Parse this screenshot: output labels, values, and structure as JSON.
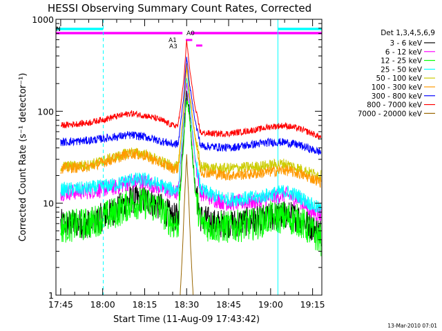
{
  "chart_data": {
    "type": "line",
    "title": "HESSI Observing Summary Count Rates, Corrected",
    "xlabel": "Start Time (11-Aug-09 17:43:42)",
    "ylabel": "Corrected Count Rate (s⁻¹ detector⁻¹)",
    "y_scale": "log",
    "ylim": [
      1,
      1000
    ],
    "xlim_minutes": [
      -1.7,
      93.3
    ],
    "x_ticks": [
      {
        "label": "17:45",
        "min": 0
      },
      {
        "label": "18:00",
        "min": 15
      },
      {
        "label": "18:15",
        "min": 30
      },
      {
        "label": "18:30",
        "min": 45
      },
      {
        "label": "18:45",
        "min": 60
      },
      {
        "label": "19:00",
        "min": 75
      },
      {
        "label": "19:15",
        "min": 90
      }
    ],
    "y_ticks": [
      {
        "label": "1",
        "value": 1
      },
      {
        "label": "10",
        "value": 10
      },
      {
        "label": "100",
        "value": 100
      },
      {
        "label": "1000",
        "value": 1000
      }
    ],
    "legend": {
      "position": "right",
      "header": "Det 1,3,4,5,6,9"
    },
    "series": [
      {
        "name": "3 - 6 keV",
        "color": "#000000",
        "x": [
          0,
          10,
          20,
          25,
          30,
          35,
          40,
          42,
          44,
          45,
          46,
          48,
          50,
          55,
          60,
          70,
          75,
          80,
          85,
          90,
          93
        ],
        "y": [
          6,
          6,
          8.5,
          11,
          11,
          9.5,
          7,
          7,
          60,
          160,
          100,
          15,
          7,
          6,
          6,
          6.5,
          7,
          7.5,
          7,
          5.5,
          4.8
        ]
      },
      {
        "name": "6 - 12 keV",
        "color": "#ff00ff",
        "x": [
          0,
          10,
          20,
          25,
          30,
          35,
          40,
          42,
          44,
          45,
          46,
          48,
          50,
          55,
          60,
          70,
          75,
          80,
          85,
          90,
          93
        ],
        "y": [
          13,
          13.5,
          15,
          17,
          17,
          15,
          13,
          13,
          80,
          215,
          120,
          30,
          13,
          11,
          10,
          10.5,
          11.5,
          12.5,
          11,
          8,
          7.5
        ]
      },
      {
        "name": "12 - 25 keV",
        "color": "#00ff00",
        "x": [
          0,
          10,
          20,
          25,
          30,
          35,
          40,
          42,
          44,
          45,
          46,
          48,
          50,
          55,
          60,
          70,
          75,
          80,
          85,
          90,
          93
        ],
        "y": [
          5.5,
          6,
          8,
          10,
          10,
          9,
          6,
          6,
          50,
          140,
          90,
          14,
          6,
          5.5,
          5.5,
          6,
          7,
          7,
          6.5,
          4.8,
          4
        ]
      },
      {
        "name": "25 - 50 keV",
        "color": "#00ffff",
        "x": [
          0,
          10,
          20,
          25,
          30,
          35,
          40,
          42,
          44,
          45,
          46,
          48,
          50,
          55,
          60,
          70,
          75,
          80,
          85,
          90,
          93
        ],
        "y": [
          14,
          14.5,
          16,
          18,
          18,
          16,
          14,
          14,
          90,
          240,
          130,
          32,
          14,
          12,
          11,
          11.5,
          12.5,
          13.5,
          12,
          9.5,
          8.5
        ]
      },
      {
        "name": "50 - 100 keV",
        "color": "#cccc00",
        "x": [
          0,
          10,
          20,
          25,
          30,
          35,
          40,
          42,
          44,
          45,
          46,
          48,
          50,
          55,
          60,
          70,
          75,
          80,
          85,
          90,
          93
        ],
        "y": [
          25,
          26,
          32,
          36,
          34,
          29,
          25,
          25,
          110,
          300,
          150,
          55,
          25,
          24,
          24,
          25,
          26,
          27,
          24,
          21,
          20
        ]
      },
      {
        "name": "100 - 300 keV",
        "color": "#ff9900",
        "x": [
          0,
          10,
          20,
          25,
          30,
          35,
          40,
          42,
          44,
          45,
          46,
          48,
          50,
          55,
          60,
          70,
          75,
          80,
          85,
          90,
          93
        ],
        "y": [
          24,
          25,
          31,
          35,
          33,
          28,
          24,
          24,
          105,
          340,
          160,
          52,
          22,
          21,
          20,
          21,
          22,
          23,
          21,
          18.5,
          17
        ]
      },
      {
        "name": "300 - 800 keV",
        "color": "#0000ff",
        "x": [
          0,
          10,
          20,
          25,
          30,
          35,
          40,
          42,
          44,
          45,
          46,
          48,
          50,
          55,
          60,
          70,
          75,
          80,
          85,
          90,
          93
        ],
        "y": [
          46,
          48,
          53,
          55,
          53,
          48,
          44,
          44,
          150,
          400,
          200,
          80,
          42,
          41,
          40,
          44,
          46,
          46,
          43,
          38,
          36
        ]
      },
      {
        "name": "800 - 7000 keV",
        "color": "#ff0000",
        "x": [
          0,
          10,
          20,
          25,
          30,
          35,
          40,
          42,
          44,
          45,
          46,
          48,
          50,
          55,
          60,
          70,
          75,
          80,
          85,
          90,
          93
        ],
        "y": [
          70,
          75,
          88,
          95,
          90,
          82,
          70,
          70,
          220,
          600,
          300,
          110,
          58,
          57,
          57,
          63,
          68,
          70,
          65,
          57,
          52
        ]
      },
      {
        "name": "7000 - 20000 keV",
        "color": "#996600",
        "x": [
          42.7,
          43.5,
          44.3,
          45,
          45.7,
          46.5,
          47.3
        ],
        "y": [
          1,
          3,
          12,
          33,
          12,
          3,
          1
        ]
      }
    ],
    "flag_annotations": [
      {
        "label": "N",
        "color": "#00ffff"
      },
      {
        "label": "A1",
        "color": "#ff00ff"
      },
      {
        "label": "A0",
        "color": "#ff00ff"
      },
      {
        "label": "A3",
        "color": "#ff00ff"
      }
    ],
    "flag_bars": [
      {
        "color": "#00ffff",
        "ranges": [
          [
            -1.7,
            15.2
          ],
          [
            77.6,
            93.3
          ]
        ]
      },
      {
        "color": "#ff00ff",
        "ranges": [
          [
            -1.7,
            43.5
          ],
          [
            46.4,
            93.3
          ]
        ]
      }
    ],
    "flag_attenuator": [
      {
        "color": "#ff00ff",
        "ranges": [
          [
            44.7,
            47.0
          ],
          [
            48.4,
            50.6
          ]
        ]
      }
    ],
    "vertical_markers": [
      {
        "color": "#00ffff",
        "style": "dashed",
        "min": 15.2
      },
      {
        "color": "#00ffff",
        "style": "solid",
        "min": 77.6
      },
      {
        "color": "#00ffff",
        "style": "dashed",
        "min": 93.3
      },
      {
        "color": "#00ffff",
        "style": "solid",
        "min": -1.7
      }
    ]
  },
  "timestamp": "13-Mar-2010 07:01"
}
